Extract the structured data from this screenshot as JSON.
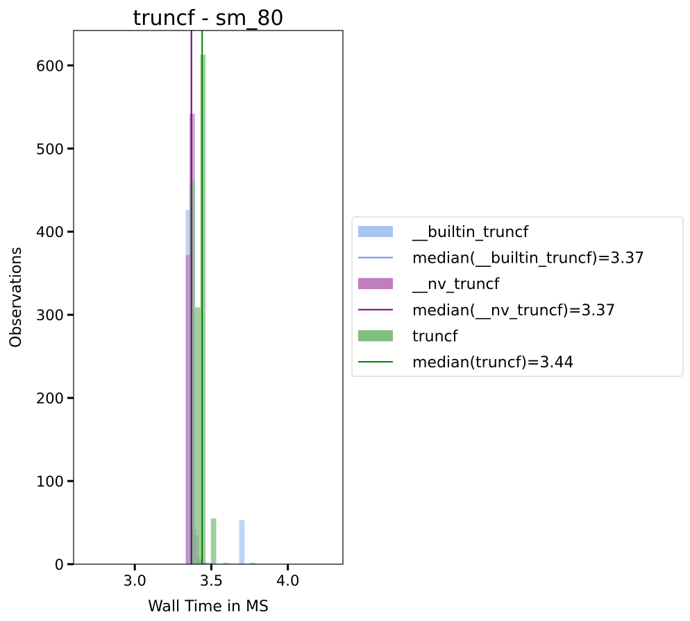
{
  "chart_data": {
    "type": "bar",
    "title": "truncf - sm_80",
    "xlabel": "Wall Time in MS",
    "ylabel": "Observations",
    "xlim": [
      2.6,
      4.36
    ],
    "ylim": [
      0,
      642
    ],
    "xticks": [
      3.0,
      3.5,
      4.0
    ],
    "xtick_labels": [
      "3.0",
      "3.5",
      "4.0"
    ],
    "yticks": [
      0,
      100,
      200,
      300,
      400,
      500,
      600
    ],
    "ytick_labels": [
      "0",
      "100",
      "200",
      "300",
      "400",
      "500",
      "600"
    ],
    "grid": false,
    "legend_position": "right",
    "bin_width": 0.035,
    "series": [
      {
        "name": "__builtin_truncf",
        "color": "#aac4f2",
        "bins": [
          {
            "x": 3.35,
            "y": 426
          },
          {
            "x": 3.385,
            "y": 43
          },
          {
            "x": 3.42,
            "y": 8
          },
          {
            "x": 3.455,
            "y": 2
          },
          {
            "x": 3.49,
            "y": 2
          },
          {
            "x": 3.595,
            "y": 2
          },
          {
            "x": 3.7,
            "y": 53
          },
          {
            "x": 3.77,
            "y": 2
          }
        ]
      },
      {
        "name": "__nv_truncf",
        "color": "#bf7fbf",
        "bins": [
          {
            "x": 3.35,
            "y": 372
          },
          {
            "x": 3.375,
            "y": 542
          },
          {
            "x": 3.4,
            "y": 35
          },
          {
            "x": 3.425,
            "y": 5
          },
          {
            "x": 3.45,
            "y": 2
          }
        ]
      },
      {
        "name": "truncf",
        "color": "#7fbf7f",
        "bins": [
          {
            "x": 3.375,
            "y": 461
          },
          {
            "x": 3.41,
            "y": 309
          },
          {
            "x": 3.445,
            "y": 613
          },
          {
            "x": 3.515,
            "y": 55
          }
        ]
      }
    ],
    "medians": [
      {
        "label": "median(__builtin_truncf)=3.37",
        "x": 3.37,
        "color": "#6495ed"
      },
      {
        "label": "median(__nv_truncf)=3.37",
        "x": 3.37,
        "color": "#800080"
      },
      {
        "label": "median(truncf)=3.44",
        "x": 3.44,
        "color": "#008000"
      }
    ],
    "legend": [
      {
        "label": "__builtin_truncf",
        "kind": "patch",
        "color": "#aac4f2"
      },
      {
        "label": "median(__builtin_truncf)=3.37",
        "kind": "line",
        "color": "#6495ed"
      },
      {
        "label": "__nv_truncf",
        "kind": "patch",
        "color": "#bf7fbf"
      },
      {
        "label": "median(__nv_truncf)=3.37",
        "kind": "line",
        "color": "#800080"
      },
      {
        "label": "truncf",
        "kind": "patch",
        "color": "#7fbf7f"
      },
      {
        "label": "median(truncf)=3.44",
        "kind": "line",
        "color": "#008000"
      }
    ]
  }
}
